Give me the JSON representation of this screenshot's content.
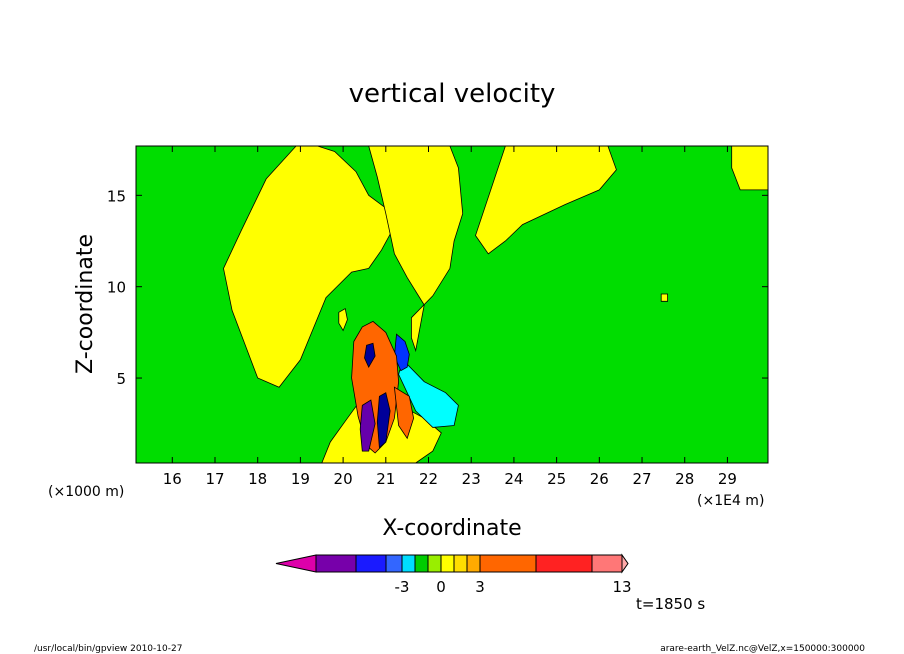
{
  "chart_data": {
    "type": "heatmap",
    "title": "vertical velocity",
    "xlabel": "X-coordinate",
    "ylabel": "Z-coordinate",
    "x_unit_label": "(×1E4 m)",
    "y_unit_label": "(×1000 m)",
    "xlim": [
      15.15,
      29.95
    ],
    "ylim": [
      0.35,
      17.7
    ],
    "x_ticks": [
      16,
      17,
      18,
      19,
      20,
      21,
      22,
      23,
      24,
      25,
      26,
      27,
      28,
      29
    ],
    "x_tick_labels": [
      "16",
      "17",
      "18",
      "19",
      "20",
      "21",
      "22",
      "23",
      "24",
      "25",
      "26",
      "27",
      "28",
      "29"
    ],
    "y_ticks": [
      5,
      10,
      15
    ],
    "y_tick_labels": [
      "5",
      "10",
      "15"
    ],
    "background_color": "#00dd00",
    "regions": [
      {
        "level_color": "#ffff00",
        "x": [
          17.6,
          18.2,
          18.9,
          19.4,
          19.8,
          20.3,
          20.6,
          21.0,
          21.2,
          20.9,
          20.6,
          20.2,
          19.6,
          19.0,
          18.5,
          18.0,
          17.4,
          17.2
        ],
        "y": [
          13.0,
          15.9,
          17.7,
          17.7,
          17.4,
          16.3,
          15.0,
          14.3,
          13.3,
          12.0,
          11.0,
          10.8,
          9.4,
          6.0,
          4.5,
          5.0,
          8.7,
          11.0
        ]
      },
      {
        "level_color": "#ffff00",
        "x": [
          20.6,
          21.5,
          22.5,
          22.7,
          22.8,
          22.6,
          22.5,
          22.1,
          21.6,
          21.6,
          21.7,
          21.9,
          21.5,
          21.2,
          21.0,
          20.8
        ],
        "y": [
          17.7,
          17.7,
          17.7,
          16.5,
          14.0,
          12.5,
          11.0,
          9.5,
          8.3,
          7.2,
          6.5,
          9.0,
          10.5,
          11.8,
          14.0,
          16.0
        ]
      },
      {
        "level_color": "#ffff00",
        "x": [
          23.8,
          25.0,
          26.2,
          26.4,
          26.0,
          25.2,
          24.2,
          23.8,
          23.4,
          23.1
        ],
        "y": [
          17.7,
          17.7,
          17.7,
          16.4,
          15.3,
          14.5,
          13.4,
          12.5,
          11.8,
          12.8
        ]
      },
      {
        "level_color": "#ffff00",
        "x": [
          29.1,
          29.95,
          29.95,
          29.3,
          29.1
        ],
        "y": [
          17.7,
          17.7,
          15.3,
          15.3,
          16.5
        ]
      },
      {
        "level_color": "#ffff00",
        "x": [
          19.5,
          20.1,
          20.8,
          21.7,
          22.1,
          22.3,
          21.9,
          21.5,
          21.2,
          20.6,
          20.1,
          19.7
        ],
        "y": [
          0.35,
          0.35,
          0.35,
          0.35,
          1.0,
          2.0,
          2.8,
          3.3,
          4.0,
          4.4,
          2.8,
          1.5
        ]
      },
      {
        "level_color": "#00ffff",
        "x": [
          21.4,
          21.9,
          22.4,
          22.7,
          22.6,
          22.1,
          21.7,
          21.5,
          21.3
        ],
        "y": [
          6.0,
          4.8,
          4.2,
          3.5,
          2.4,
          2.3,
          3.2,
          4.2,
          5.2
        ]
      },
      {
        "level_color": "#0033ff",
        "x": [
          21.25,
          21.45,
          21.55,
          21.5,
          21.35,
          21.2
        ],
        "y": [
          7.4,
          7.0,
          6.3,
          5.6,
          5.4,
          6.2
        ]
      },
      {
        "level_color": "#ff6600",
        "x": [
          20.25,
          20.45,
          20.7,
          21.0,
          21.25,
          21.3,
          21.2,
          21.0,
          20.75,
          20.55,
          20.35,
          20.2
        ],
        "y": [
          7.0,
          7.8,
          8.1,
          7.5,
          6.2,
          4.8,
          2.8,
          1.5,
          0.9,
          1.3,
          2.9,
          5.0
        ]
      },
      {
        "level_color": "#ff6600",
        "x": [
          21.2,
          21.55,
          21.65,
          21.5,
          21.3
        ],
        "y": [
          4.5,
          4.0,
          2.8,
          1.7,
          2.4
        ]
      },
      {
        "level_color": "#6600aa",
        "x": [
          20.45,
          20.65,
          20.75,
          20.6,
          20.45,
          20.4
        ],
        "y": [
          3.5,
          3.8,
          2.5,
          1.0,
          1.0,
          2.2
        ]
      },
      {
        "level_color": "#000099",
        "x": [
          20.85,
          21.0,
          21.1,
          21.0,
          20.85,
          20.8
        ],
        "y": [
          4.0,
          4.2,
          3.2,
          1.5,
          1.2,
          2.6
        ]
      },
      {
        "level_color": "#000099",
        "x": [
          20.55,
          20.7,
          20.75,
          20.6,
          20.5
        ],
        "y": [
          6.8,
          6.9,
          6.2,
          5.6,
          6.1
        ]
      },
      {
        "level_color": "#ffff00",
        "x": [
          19.9,
          20.05,
          20.1,
          20.0,
          19.9
        ],
        "y": [
          8.6,
          8.8,
          8.2,
          7.6,
          8.0
        ]
      },
      {
        "level_color": "#ffff00",
        "x": [
          27.45,
          27.6,
          27.6,
          27.45
        ],
        "y": [
          9.6,
          9.6,
          9.2,
          9.2
        ]
      }
    ],
    "colorbar": {
      "colors": [
        "#dd00aa",
        "#7700aa",
        "#1a1aff",
        "#3366ff",
        "#00ddff",
        "#00cc00",
        "#99ee00",
        "#ffff00",
        "#ffdd00",
        "#ffaa00",
        "#ff6600",
        "#ff2222",
        "#ff7777",
        "#ffaaaa"
      ],
      "tick_labels": [
        "-3",
        "0",
        "3",
        "13"
      ],
      "tick_index": [
        3,
        6,
        9,
        13
      ]
    },
    "time_label": "t=1850 s"
  },
  "footer": {
    "left": "/usr/local/bin/gpview  2010-10-27",
    "right": "arare-earth_VelZ.nc@VelZ,x=150000:300000"
  }
}
